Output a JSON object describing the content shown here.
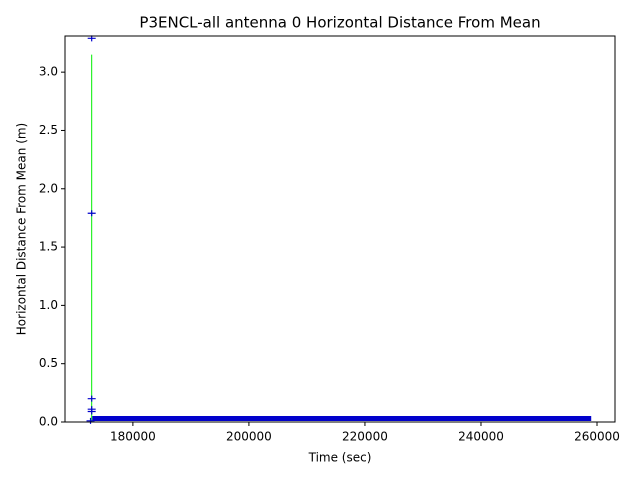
{
  "chart_data": {
    "type": "scatter",
    "title": "P3ENCL-all antenna 0 Horizontal Distance From Mean",
    "xlabel": "Time (sec)",
    "ylabel": "Horizontal Distance From Mean (m)",
    "xlim": [
      168300,
      263100
    ],
    "ylim": [
      0,
      3.31
    ],
    "xticks": [
      180000,
      200000,
      220000,
      240000,
      260000
    ],
    "yticks": [
      {
        "value": 0,
        "label": "0.0"
      },
      {
        "value": 0.5,
        "label": "0.5"
      },
      {
        "value": 1,
        "label": "1.0"
      },
      {
        "value": 1.5,
        "label": "1.5"
      },
      {
        "value": 2,
        "label": "2.0"
      },
      {
        "value": 2.5,
        "label": "2.5"
      },
      {
        "value": 3,
        "label": "3.0"
      }
    ],
    "series": [
      {
        "style": "line",
        "color": "#00ee00",
        "x": [
          172900,
          172900
        ],
        "values": [
          0,
          3.15
        ]
      },
      {
        "style": "band",
        "color": "#0000cc",
        "x": [
          173000,
          175000,
          177000,
          179000,
          181000,
          183000,
          185000,
          187000,
          189000,
          191000,
          193000,
          195000,
          197000,
          199000,
          201000,
          203000,
          205000,
          207000,
          209000,
          211000,
          213000,
          215000,
          217000,
          219000,
          221000,
          223000,
          225000,
          227000,
          229000,
          231000,
          233000,
          235000,
          237000,
          239000,
          241000,
          243000,
          245000,
          247000,
          249000,
          251000,
          253000,
          255000,
          257000,
          259000
        ],
        "values": [
          0.03,
          0.03,
          0.03,
          0.03,
          0.03,
          0.03,
          0.03,
          0.03,
          0.03,
          0.03,
          0.03,
          0.03,
          0.03,
          0.03,
          0.03,
          0.03,
          0.03,
          0.03,
          0.03,
          0.03,
          0.03,
          0.03,
          0.03,
          0.03,
          0.03,
          0.03,
          0.03,
          0.03,
          0.03,
          0.03,
          0.03,
          0.03,
          0.03,
          0.03,
          0.03,
          0.03,
          0.03,
          0.03,
          0.03,
          0.03,
          0.03,
          0.03,
          0.03,
          0.03
        ]
      },
      {
        "style": "marker",
        "color": "#0000cc",
        "x": [
          172900,
          172900,
          172900,
          172900,
          172900,
          172700
        ],
        "values": [
          3.29,
          1.79,
          0.2,
          0.11,
          0.09,
          0.01
        ]
      }
    ]
  }
}
